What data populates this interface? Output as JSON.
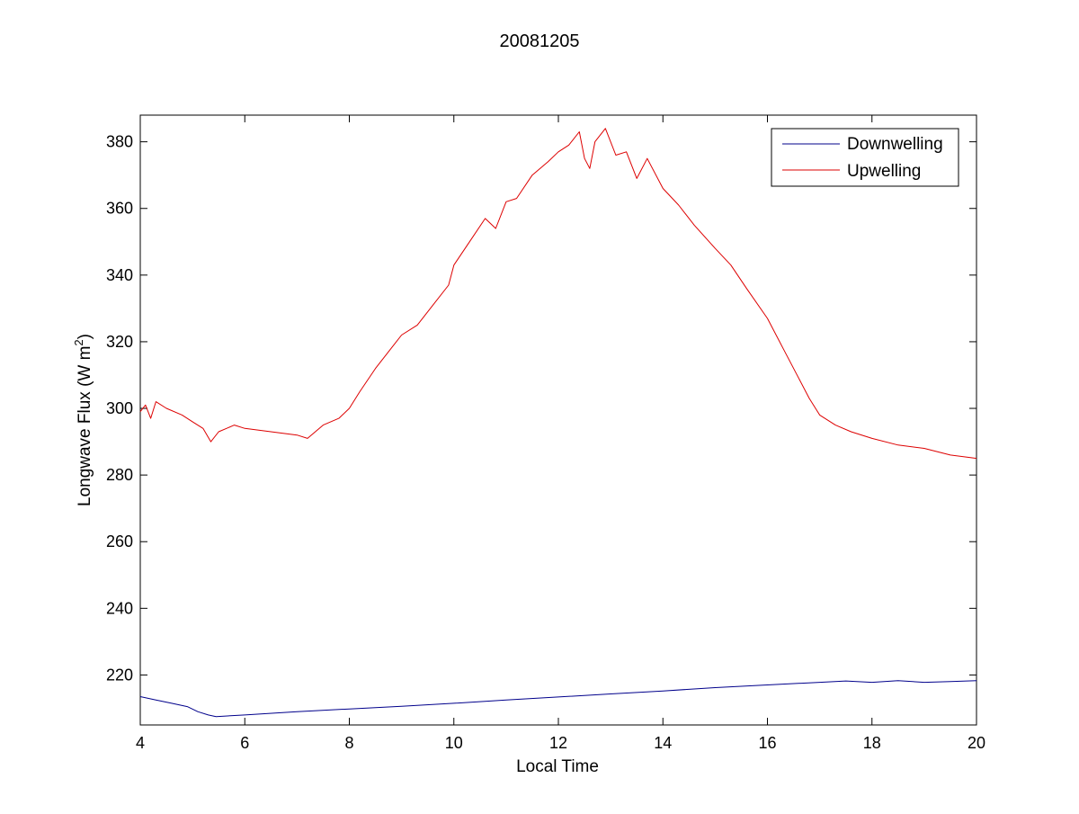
{
  "chart_data": {
    "type": "line",
    "title": "20081205",
    "xlabel": "Local Time",
    "ylabel_main": "Longwave Flux (W m",
    "ylabel_sup": "2",
    "ylabel_close": ")",
    "xlim": [
      4,
      20
    ],
    "ylim": [
      205,
      388
    ],
    "xticks": [
      4,
      6,
      8,
      10,
      12,
      14,
      16,
      18,
      20
    ],
    "yticks": [
      220,
      240,
      260,
      280,
      300,
      320,
      340,
      360,
      380
    ],
    "grid": false,
    "legend_position": "top-right",
    "series": [
      {
        "name": "Downwelling",
        "color": "#00008b",
        "x": [
          4.0,
          4.3,
          4.6,
          4.9,
          5.1,
          5.3,
          5.45,
          6,
          7,
          8,
          9,
          10,
          11,
          12,
          13,
          14,
          15,
          16,
          17,
          17.5,
          18,
          18.5,
          19,
          19.5,
          20
        ],
        "y": [
          213.5,
          212.5,
          211.5,
          210.5,
          209,
          208,
          207.5,
          208,
          209,
          209.8,
          210.6,
          211.5,
          212.5,
          213.4,
          214.3,
          215.2,
          216.2,
          217.0,
          217.8,
          218.2,
          217.8,
          218.3,
          217.8,
          218.0,
          218.3
        ]
      },
      {
        "name": "Upwelling",
        "color": "#dd0000",
        "x": [
          4.0,
          4.1,
          4.2,
          4.3,
          4.5,
          4.8,
          5.0,
          5.2,
          5.35,
          5.5,
          5.8,
          6.0,
          6.5,
          7.0,
          7.2,
          7.5,
          7.8,
          8.0,
          8.2,
          8.5,
          8.8,
          9.0,
          9.3,
          9.6,
          9.9,
          10.0,
          10.3,
          10.6,
          10.8,
          11.0,
          11.2,
          11.5,
          11.8,
          12.0,
          12.2,
          12.4,
          12.5,
          12.6,
          12.7,
          12.9,
          13.1,
          13.3,
          13.5,
          13.7,
          14.0,
          14.3,
          14.6,
          15.0,
          15.3,
          15.6,
          16.0,
          16.3,
          16.6,
          16.8,
          17.0,
          17.3,
          17.6,
          18.0,
          18.5,
          19.0,
          19.5,
          20.0
        ],
        "y": [
          299,
          301,
          297,
          302,
          300,
          298,
          296,
          294,
          290,
          293,
          295,
          294,
          293,
          292,
          291,
          295,
          297,
          300,
          305,
          312,
          318,
          322,
          325,
          331,
          337,
          343,
          350,
          357,
          354,
          362,
          363,
          370,
          374,
          377,
          379,
          383,
          375,
          372,
          380,
          384,
          376,
          377,
          369,
          375,
          366,
          361,
          355,
          348,
          343,
          336,
          327,
          318,
          309,
          303,
          298,
          295,
          293,
          291,
          289,
          288,
          286,
          285
        ]
      }
    ]
  }
}
